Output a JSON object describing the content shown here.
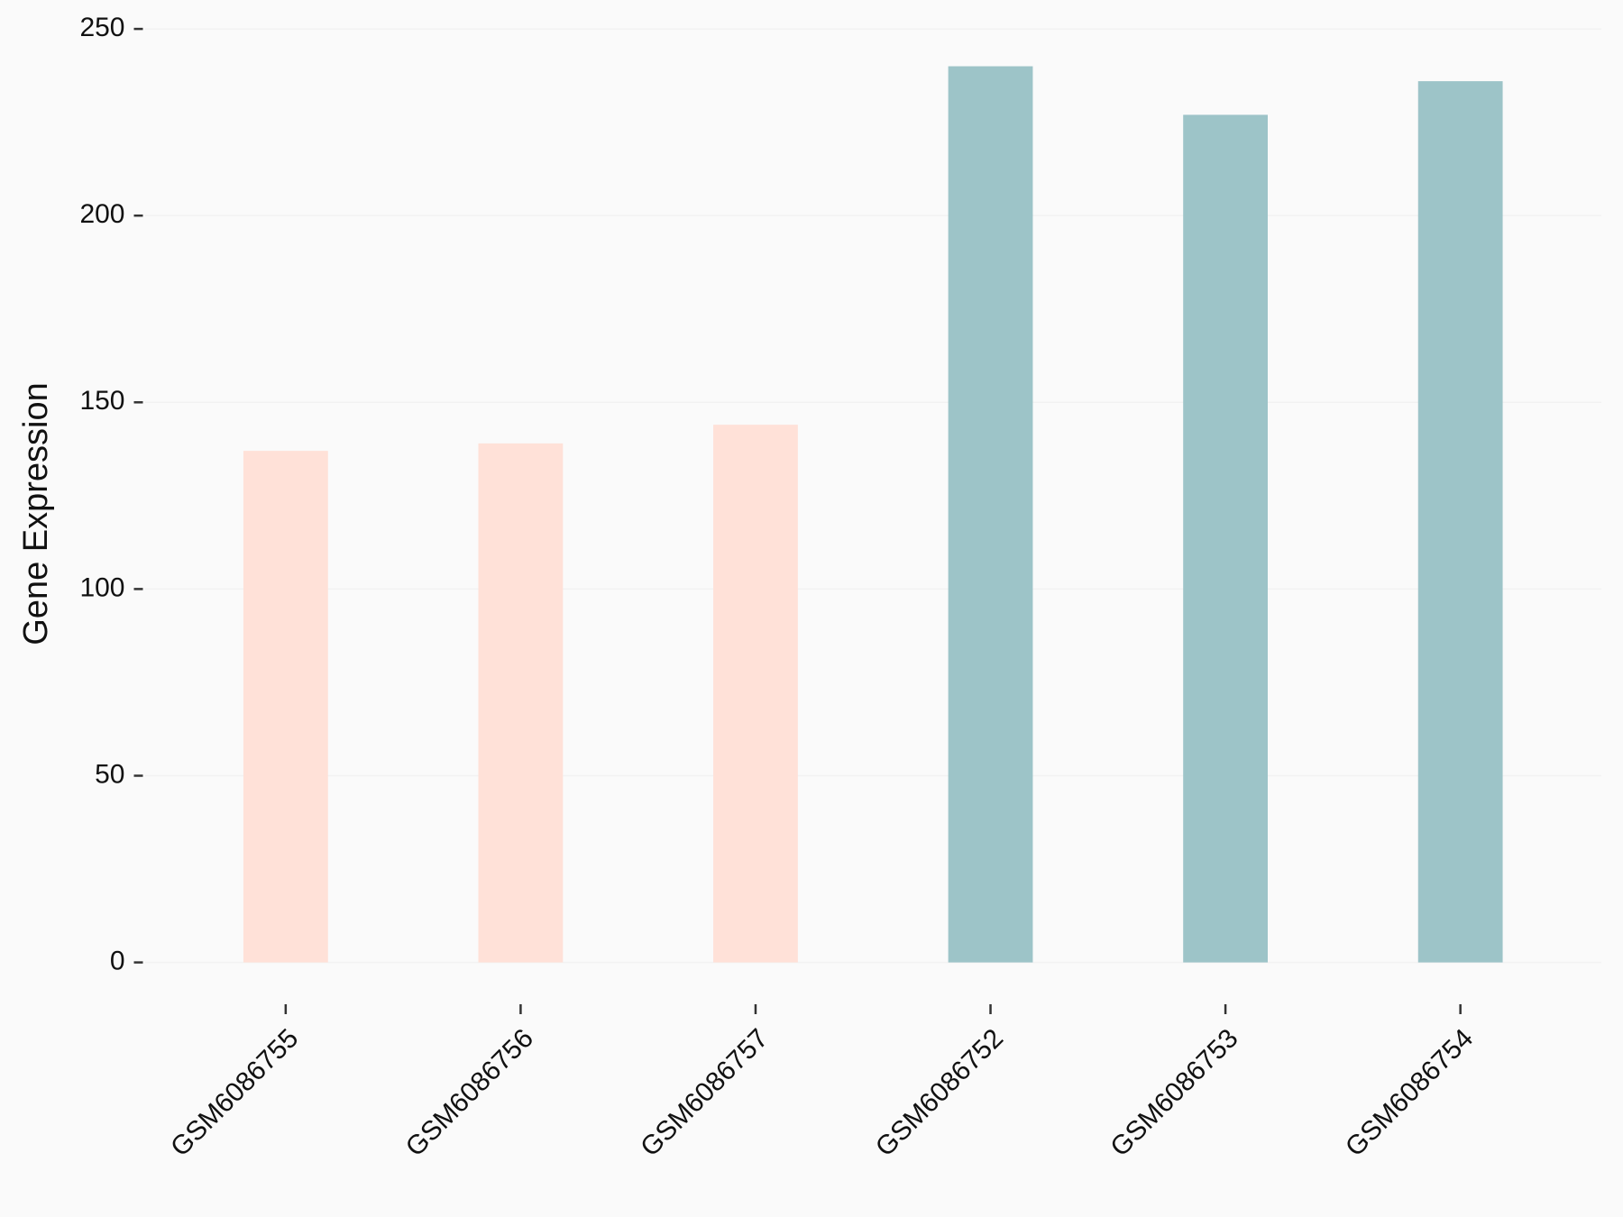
{
  "chart_data": {
    "type": "bar",
    "y_label": "Gene Expression",
    "categories": [
      "GSM6086755",
      "GSM6086756",
      "GSM6086757",
      "GSM6086752",
      "GSM6086753",
      "GSM6086754"
    ],
    "values": [
      137,
      139,
      144,
      240,
      227,
      236
    ],
    "colors": [
      "#ffe1d8",
      "#ffe1d8",
      "#ffe1d8",
      "#9dc4c8",
      "#9dc4c8",
      "#9dc4c8"
    ],
    "ylim": [
      -12,
      252
    ],
    "yticks": [
      0,
      50,
      100,
      150,
      200,
      250
    ],
    "grid": true
  }
}
